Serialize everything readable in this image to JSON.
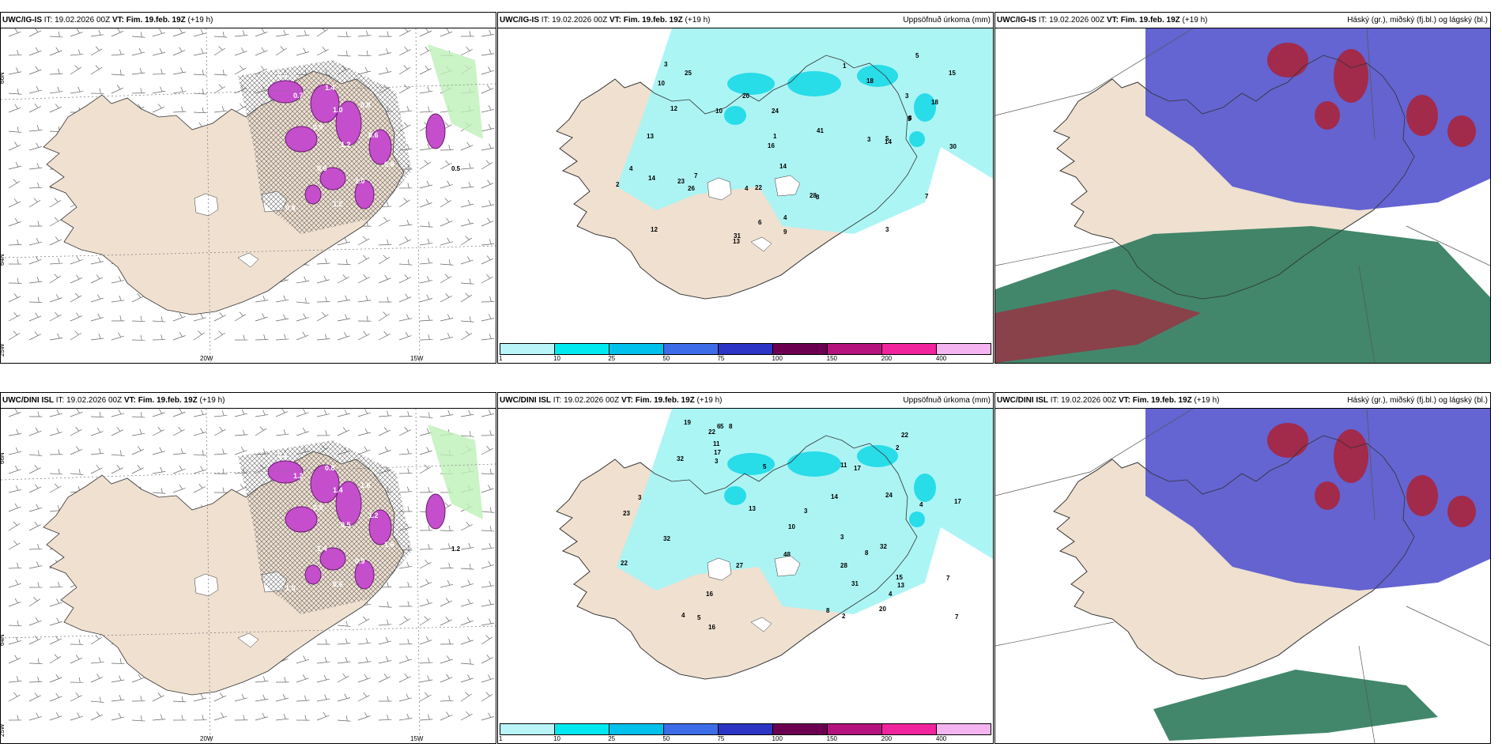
{
  "panels": [
    {
      "model": "UWC/IG-IS",
      "it": "IT: 19.02.2026 00Z",
      "vt_label": "VT:",
      "vt": "Fim. 19.feb. 19Z",
      "lead": "(+19 h)",
      "right": "",
      "kind": "wind",
      "values_white": [
        "0.4",
        "0.7",
        "1.4",
        "1.0",
        "0.8",
        "0.9",
        "1.2",
        "0.6",
        "0.8",
        "0.6",
        "1.0",
        "1.2",
        "0.8"
      ],
      "values_black": [
        "0.5"
      ]
    },
    {
      "model": "UWC/IG-IS",
      "it": "IT: 19.02.2026 00Z",
      "vt_label": "VT:",
      "vt": "Fim. 19.feb. 19Z",
      "lead": "(+19 h)",
      "right": "Uppsöfnuð úrkoma (mm)",
      "kind": "precip",
      "values_black": [
        "3",
        "3",
        "5",
        "14",
        "4",
        "20",
        "16",
        "23",
        "22",
        "30",
        "26",
        "25",
        "31",
        "18",
        "12",
        "15",
        "8",
        "24",
        "13",
        "41",
        "28",
        "10",
        "7",
        "14",
        "4",
        "7",
        "6",
        "12",
        "5",
        "3",
        "8",
        "9",
        "13",
        "18",
        "14",
        "10",
        "3",
        "4",
        "2",
        "1",
        "1",
        "5"
      ]
    },
    {
      "model": "UWC/IG-IS",
      "it": "IT: 19.02.2026 00Z",
      "vt_label": "VT:",
      "vt": "Fim. 19.feb. 19Z",
      "lead": "(+19 h)",
      "right": "Háský (gr.), miðský (fj.bl.) og lágský (bl.)",
      "kind": "cloud"
    },
    {
      "model": "UWC/DINI ISL",
      "it": "IT: 19.02.2026 00Z",
      "vt_label": "VT:",
      "vt": "Fim. 19.feb. 19Z",
      "lead": "(+19 h)",
      "right": "",
      "kind": "wind",
      "values_white": [
        "0.4",
        "1.2",
        "0.8",
        "1.4",
        "1.6",
        "0.8",
        "0.5",
        "1.2",
        "1.6",
        "1.4",
        "0.9",
        "0.6",
        "1.0",
        "0.3"
      ],
      "values_black": [
        "1.2"
      ]
    },
    {
      "model": "UWC/DINI ISL",
      "it": "IT: 19.02.2026 00Z",
      "vt_label": "VT:",
      "vt": "Fim. 19.feb. 19Z",
      "lead": "(+19 h)",
      "right": "Uppsöfnuð úrkoma (mm)",
      "kind": "precip",
      "values_black": [
        "5",
        "20",
        "24",
        "31",
        "32",
        "28",
        "13",
        "16",
        "14",
        "32",
        "27",
        "22",
        "23",
        "32",
        "19",
        "15",
        "22",
        "48",
        "4",
        "4",
        "4",
        "5",
        "5",
        "17",
        "8",
        "22",
        "16",
        "8",
        "6",
        "11",
        "10",
        "11",
        "3",
        "3",
        "2",
        "7",
        "2",
        "3",
        "3",
        "8",
        "17",
        "13",
        "17",
        "7"
      ]
    },
    {
      "model": "UWC/DINI ISL",
      "it": "IT: 19.02.2026 00Z",
      "vt_label": "VT:",
      "vt": "Fim. 19.feb. 19Z",
      "lead": "(+19 h)",
      "right": "Háský (gr.), miðský (fj.bl.) og lágský (bl.)",
      "kind": "cloud"
    }
  ],
  "axis_labels": {
    "lat_66": "66N",
    "lat_64": "64N",
    "lon_20": "20W",
    "lon_15": "15W",
    "lon_25": "25W"
  },
  "colorbar": {
    "labels": [
      "1",
      "10",
      "25",
      "50",
      "75",
      "100",
      "150",
      "200",
      "400"
    ],
    "colors": [
      "#b8f4f8",
      "#00e8f0",
      "#00c0ec",
      "#3c6ce8",
      "#2c34c4",
      "#6c0050",
      "#b4127c",
      "#f0249c",
      "#f4b4f0"
    ]
  },
  "colors": {
    "land": "#efe0d0",
    "ocean": "#ffffff",
    "precip_area": "#a8f4f4",
    "precip_strong": "#28dce8",
    "wind_magenta": "#c44ecc",
    "cloud_high": "#5c5cd0",
    "cloud_mid": "#a8243c",
    "cloud_low": "#2e7a5c"
  }
}
